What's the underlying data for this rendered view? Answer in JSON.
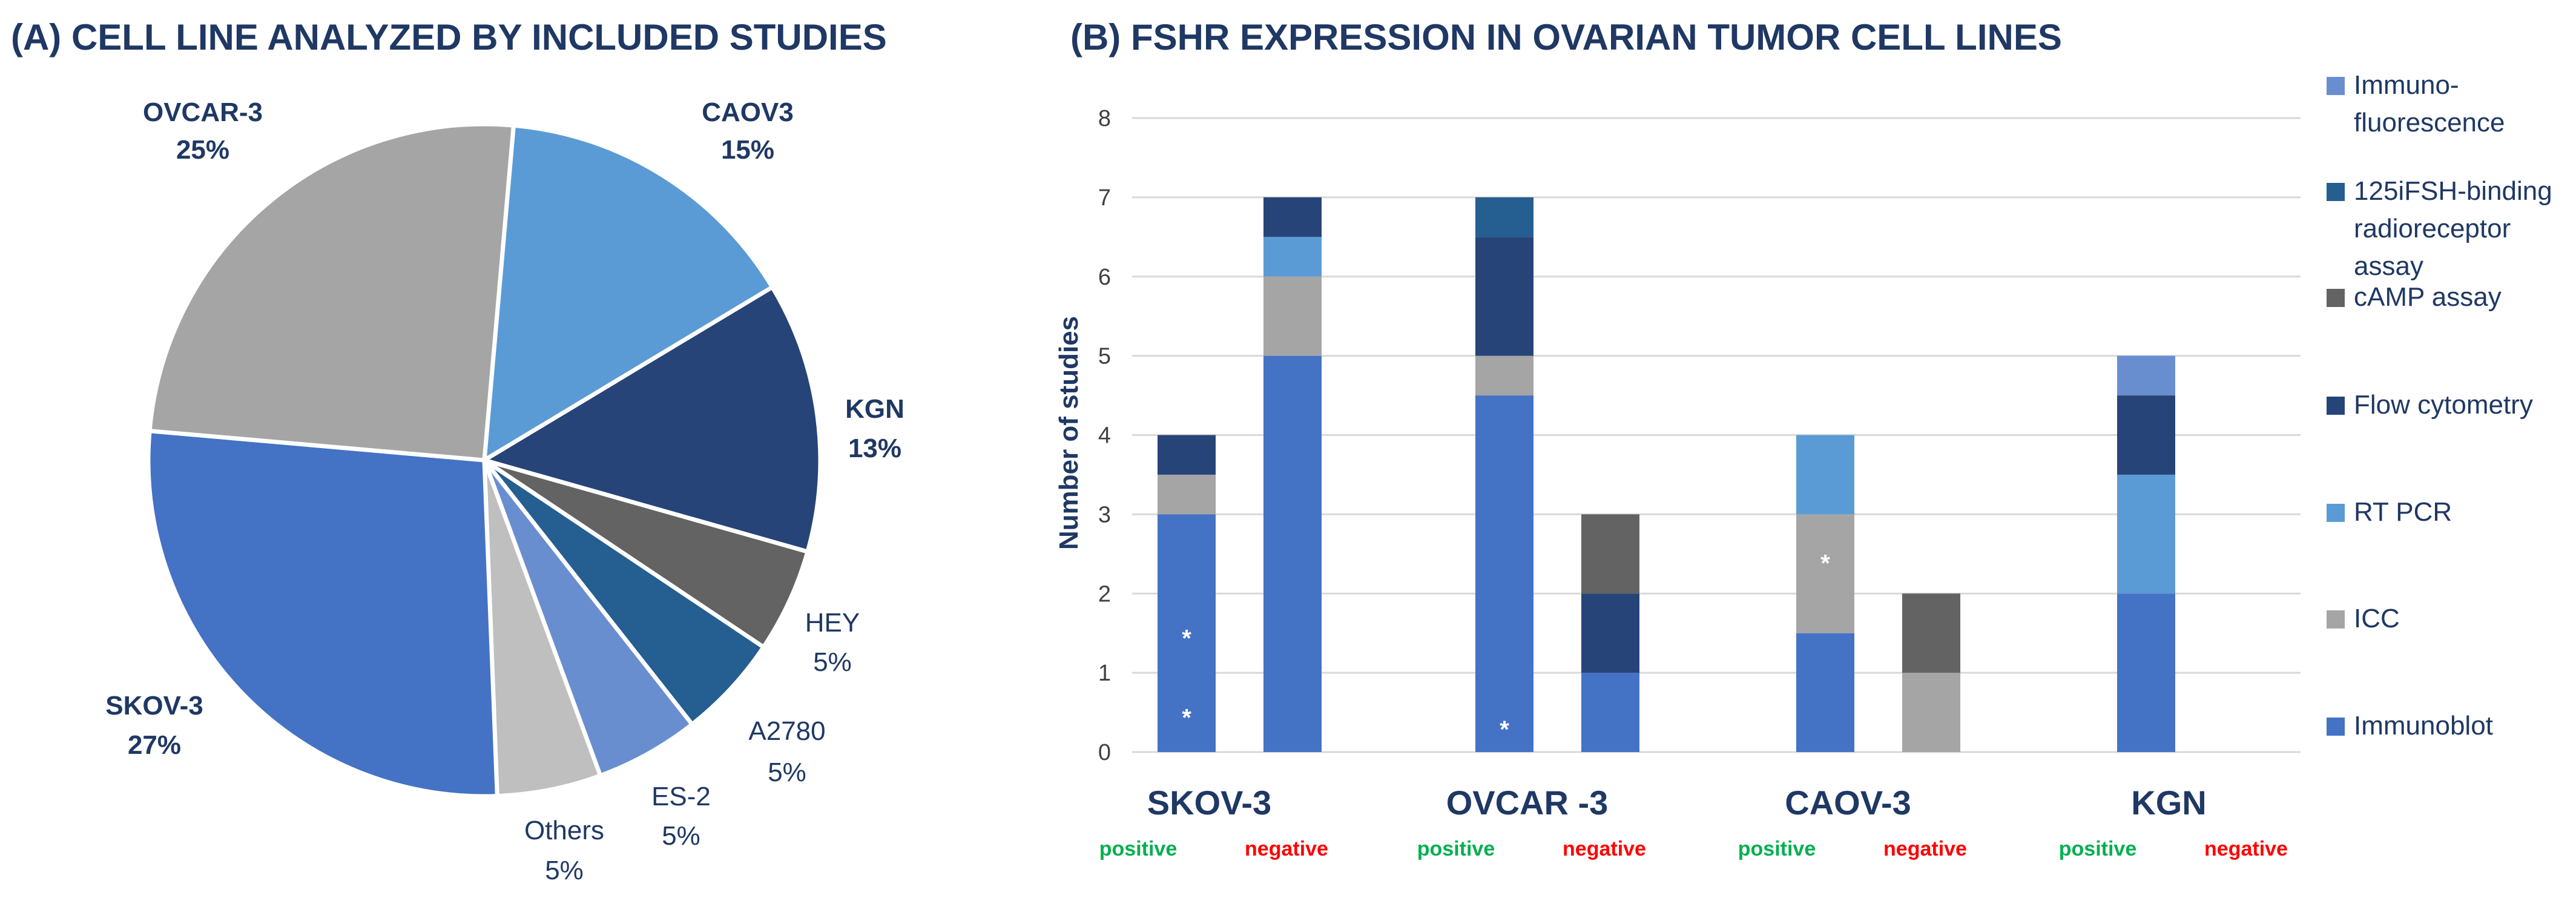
{
  "colors": {
    "immunoblot": "#4472c4",
    "icc": "#a5a5a5",
    "rtpcr": "#5b9bd5",
    "flow": "#264478",
    "camp": "#636363",
    "binding": "#255e91",
    "if": "#698ed0"
  },
  "chart_data": [
    {
      "type": "pie",
      "title": "(A) CELL LINE ANALYZED BY INCLUDED STUDIES",
      "slices": [
        {
          "name": "CAOV3",
          "pct_label": "15%",
          "value": 15,
          "color": "#5b9bd5"
        },
        {
          "name": "KGN",
          "pct_label": "13%",
          "value": 13,
          "color": "#264478"
        },
        {
          "name": "HEY",
          "pct_label": "5%",
          "value": 5,
          "color": "#636363"
        },
        {
          "name": "A2780",
          "pct_label": "5%",
          "value": 5,
          "color": "#255e91"
        },
        {
          "name": "ES-2",
          "pct_label": "5%",
          "value": 5,
          "color": "#698ed0"
        },
        {
          "name": "Others",
          "pct_label": "5%",
          "value": 5,
          "color": "#bfbfbf"
        },
        {
          "name": "SKOV-3",
          "pct_label": "27%",
          "value": 27,
          "color": "#4472c4"
        },
        {
          "name": "OVCAR-3",
          "pct_label": "25%",
          "value": 25,
          "color": "#a5a5a5"
        }
      ]
    },
    {
      "type": "bar",
      "stacked": true,
      "title": "(B) FSHR EXPRESSION IN OVARIAN TUMOR CELL LINES",
      "ylabel": "Number of studies",
      "ylim": [
        0,
        8
      ],
      "yticks": [
        "0",
        "1",
        "2",
        "3",
        "4",
        "5",
        "6",
        "7",
        "8"
      ],
      "groups": [
        {
          "name": "SKOV-3",
          "positive": "positive",
          "negative": "negative"
        },
        {
          "name": "OVCAR -3",
          "positive": "positive",
          "negative": "negative"
        },
        {
          "name": "CAOV-3",
          "positive": "positive",
          "negative": "negative"
        },
        {
          "name": "KGN",
          "positive": "positive",
          "negative": "negative"
        }
      ],
      "bars": [
        "SKOV-3 positive",
        "SKOV-3 negative",
        "OVCAR-3 positive",
        "OVCAR-3 negative",
        "CAOV-3 positive",
        "CAOV-3 negative",
        "KGN positive",
        "KGN negative"
      ],
      "series": [
        {
          "name": "Immunoblot",
          "key": "immunoblot",
          "values": [
            3,
            5,
            4.5,
            1,
            1.5,
            0,
            2,
            0
          ]
        },
        {
          "name": "ICC",
          "key": "icc",
          "values": [
            0.5,
            1,
            0.5,
            0,
            1.5,
            1,
            0,
            0
          ]
        },
        {
          "name": "RT PCR",
          "key": "rtpcr",
          "values": [
            0,
            0.5,
            0,
            0,
            1,
            0,
            1.5,
            0
          ]
        },
        {
          "name": "Flow cytometry",
          "key": "flow",
          "values": [
            0.5,
            0.5,
            1.5,
            1,
            0,
            0,
            1,
            0
          ]
        },
        {
          "name": "cAMP assay",
          "key": "camp",
          "values": [
            0,
            0,
            0,
            1,
            0,
            1,
            0,
            0
          ]
        },
        {
          "name": "125iFSH-binding radioreceptor assay",
          "key": "binding",
          "values": [
            0,
            0,
            0.5,
            0,
            0,
            0,
            0,
            0
          ]
        },
        {
          "name": "Immuno-fluorescence",
          "key": "if",
          "values": [
            0,
            0,
            0,
            0,
            0,
            0,
            0.5,
            0
          ]
        }
      ],
      "legend_order": [
        "Immuno- fluorescence",
        "125iFSH-binding radioreceptor assay",
        "cAMP assay",
        "Flow cytometry",
        "RT PCR",
        "ICC",
        "Immunoblot"
      ],
      "annotations": [
        {
          "bar": 0,
          "y": 1.5,
          "text": "*"
        },
        {
          "bar": 0,
          "y": 0.5,
          "text": "*"
        },
        {
          "bar": 2,
          "y": 0.35,
          "text": "*"
        },
        {
          "bar": 4,
          "y": 2.45,
          "text": "*"
        }
      ]
    }
  ]
}
